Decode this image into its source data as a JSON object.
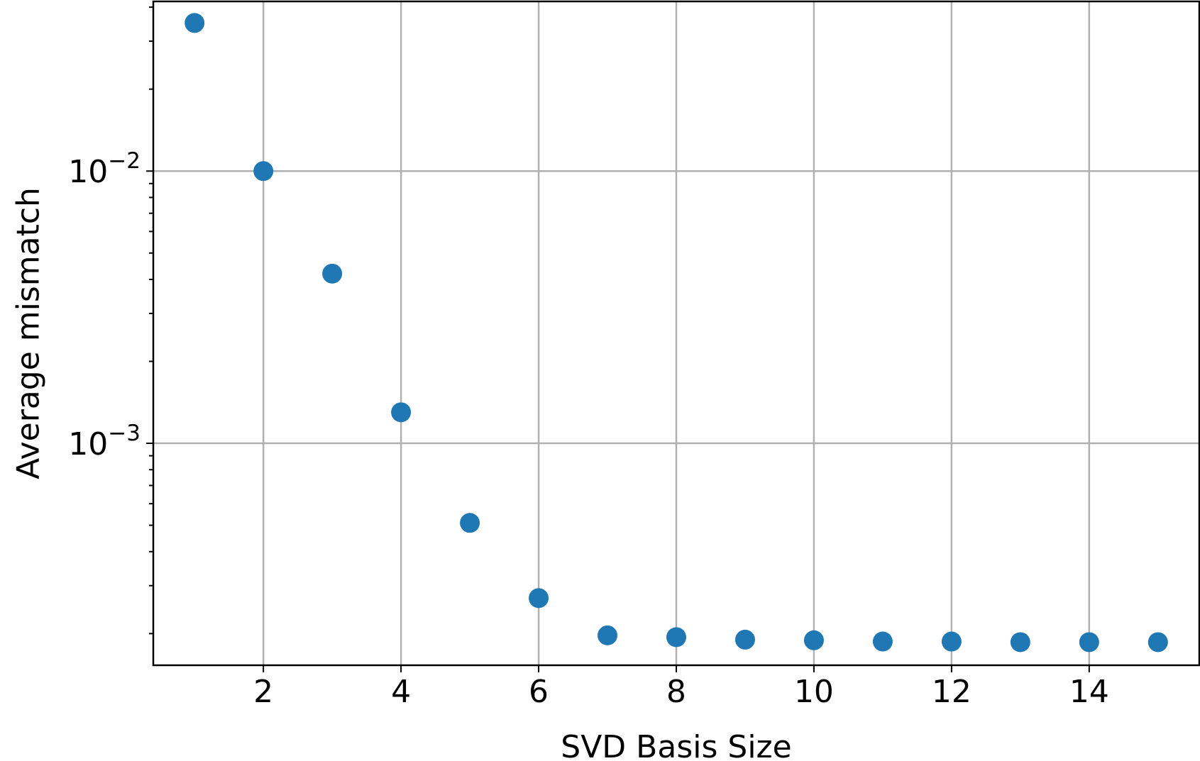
{
  "chart_data": {
    "type": "scatter",
    "title": "",
    "xlabel": "SVD Basis Size",
    "ylabel": "Average mismatch",
    "xscale": "linear",
    "yscale": "log",
    "grid": true,
    "xlim": [
      0.4,
      15.6
    ],
    "ylim": [
      0.000153,
      0.042
    ],
    "x_ticks": [
      2,
      4,
      6,
      8,
      10,
      12,
      14
    ],
    "x_tick_labels": [
      "2",
      "4",
      "6",
      "8",
      "10",
      "12",
      "14"
    ],
    "y_major_ticks": [
      0.01,
      0.001
    ],
    "y_tick_labels": [
      {
        "base": "10",
        "exponent": "−2"
      },
      {
        "base": "10",
        "exponent": "−3"
      }
    ],
    "series": [
      {
        "color": "#1f77b4",
        "marker": "circle",
        "x": [
          1,
          2,
          3,
          4,
          5,
          6,
          7,
          8,
          9,
          10,
          11,
          12,
          13,
          14,
          15
        ],
        "y": [
          0.035,
          0.01,
          0.0042,
          0.0013,
          0.00051,
          0.00027,
          0.000197,
          0.000194,
          0.00019,
          0.000189,
          0.000187,
          0.000187,
          0.000186,
          0.000186,
          0.000186
        ]
      }
    ]
  }
}
